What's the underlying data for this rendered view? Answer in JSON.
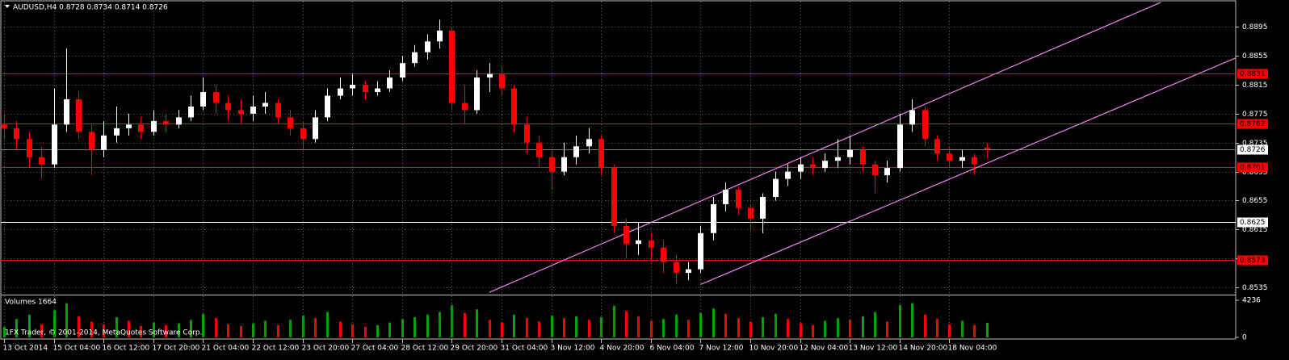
{
  "chart_data": {
    "type": "candlestick",
    "title": "AUDUSD,H4  0.8728 0.8734 0.8714 0.8726",
    "volume_title": "Volumes 1664",
    "copyright": "1FX Trader, © 2001-2014, MetaQuotes Software Corp.",
    "ylim": [
      0.8525,
      0.893
    ],
    "yticks": [
      0.8535,
      0.8575,
      0.8615,
      0.8655,
      0.8695,
      0.8735,
      0.8775,
      0.8815,
      0.8855,
      0.8895
    ],
    "vlim": [
      0,
      4236
    ],
    "vticks": [
      0,
      4236
    ],
    "grid": true,
    "up_color": "#ffffff",
    "down_color": "#ff0000",
    "volume_up_color": "#00a000",
    "volume_down_color": "#ff0000",
    "categories": [
      "13 Oct 2014",
      null,
      null,
      null,
      "15 Oct 04:00",
      null,
      null,
      null,
      "16 Oct 12:00",
      null,
      null,
      null,
      "17 Oct 20:00",
      null,
      null,
      null,
      "21 Oct 04:00",
      null,
      null,
      null,
      "22 Oct 12:00",
      null,
      null,
      null,
      "23 Oct 20:00",
      null,
      null,
      null,
      "27 Oct 04:00",
      null,
      null,
      null,
      "28 Oct 12:00",
      null,
      null,
      null,
      "29 Oct 20:00",
      null,
      null,
      null,
      "31 Oct 04:00",
      null,
      null,
      null,
      "3 Nov 12:00",
      null,
      null,
      null,
      "4 Nov 20:00",
      null,
      null,
      null,
      "6 Nov 04:00",
      null,
      null,
      null,
      "7 Nov 12:00",
      null,
      null,
      null,
      "10 Nov 20:00",
      null,
      null,
      null,
      "12 Nov 04:00",
      null,
      null,
      null,
      "13 Nov 12:00",
      null,
      null,
      null,
      "14 Nov 20:00",
      null,
      null,
      null,
      "18 Nov 04:00",
      null,
      null,
      null
    ],
    "candles": [
      [
        0.876,
        0.8775,
        0.874,
        0.8755
      ],
      [
        0.8755,
        0.8765,
        0.8725,
        0.874
      ],
      [
        0.874,
        0.875,
        0.87,
        0.8715
      ],
      [
        0.8715,
        0.873,
        0.8685,
        0.8705
      ],
      [
        0.8705,
        0.881,
        0.87,
        0.876
      ],
      [
        0.876,
        0.8865,
        0.875,
        0.8795
      ],
      [
        0.8795,
        0.8805,
        0.874,
        0.875
      ],
      [
        0.875,
        0.876,
        0.869,
        0.8725
      ],
      [
        0.8725,
        0.8765,
        0.8715,
        0.8745
      ],
      [
        0.8745,
        0.8785,
        0.8735,
        0.8755
      ],
      [
        0.8755,
        0.8775,
        0.8745,
        0.876
      ],
      [
        0.876,
        0.877,
        0.874,
        0.875
      ],
      [
        0.875,
        0.878,
        0.8745,
        0.8765
      ],
      [
        0.8765,
        0.8775,
        0.875,
        0.876
      ],
      [
        0.876,
        0.878,
        0.8755,
        0.877
      ],
      [
        0.877,
        0.88,
        0.8765,
        0.8785
      ],
      [
        0.8785,
        0.8825,
        0.878,
        0.8805
      ],
      [
        0.8805,
        0.8815,
        0.8775,
        0.879
      ],
      [
        0.879,
        0.88,
        0.8765,
        0.878
      ],
      [
        0.878,
        0.8795,
        0.876,
        0.8775
      ],
      [
        0.8775,
        0.88,
        0.8765,
        0.8785
      ],
      [
        0.8785,
        0.8805,
        0.8775,
        0.879
      ],
      [
        0.879,
        0.8795,
        0.876,
        0.877
      ],
      [
        0.877,
        0.878,
        0.8745,
        0.8755
      ],
      [
        0.8755,
        0.8765,
        0.8725,
        0.874
      ],
      [
        0.874,
        0.878,
        0.8735,
        0.877
      ],
      [
        0.877,
        0.881,
        0.8765,
        0.88
      ],
      [
        0.88,
        0.8825,
        0.8795,
        0.881
      ],
      [
        0.881,
        0.883,
        0.88,
        0.8815
      ],
      [
        0.8815,
        0.882,
        0.8795,
        0.8805
      ],
      [
        0.8805,
        0.882,
        0.88,
        0.881
      ],
      [
        0.881,
        0.8835,
        0.8805,
        0.8825
      ],
      [
        0.8825,
        0.8855,
        0.882,
        0.8845
      ],
      [
        0.8845,
        0.887,
        0.884,
        0.886
      ],
      [
        0.886,
        0.8885,
        0.885,
        0.8875
      ],
      [
        0.8875,
        0.8905,
        0.8865,
        0.889
      ],
      [
        0.889,
        0.8895,
        0.878,
        0.879
      ],
      [
        0.879,
        0.8815,
        0.876,
        0.878
      ],
      [
        0.878,
        0.8835,
        0.8775,
        0.8825
      ],
      [
        0.8825,
        0.8845,
        0.8805,
        0.883
      ],
      [
        0.883,
        0.884,
        0.88,
        0.881
      ],
      [
        0.881,
        0.8815,
        0.875,
        0.876
      ],
      [
        0.876,
        0.877,
        0.872,
        0.8735
      ],
      [
        0.8735,
        0.8745,
        0.87,
        0.8715
      ],
      [
        0.8715,
        0.8725,
        0.867,
        0.8695
      ],
      [
        0.8695,
        0.8735,
        0.869,
        0.8715
      ],
      [
        0.8715,
        0.8745,
        0.8705,
        0.873
      ],
      [
        0.873,
        0.8755,
        0.872,
        0.874
      ],
      [
        0.874,
        0.8745,
        0.869,
        0.87
      ],
      [
        0.87,
        0.8705,
        0.861,
        0.862
      ],
      [
        0.862,
        0.863,
        0.8575,
        0.8595
      ],
      [
        0.8595,
        0.8625,
        0.858,
        0.86
      ],
      [
        0.86,
        0.861,
        0.857,
        0.859
      ],
      [
        0.859,
        0.86,
        0.8555,
        0.857
      ],
      [
        0.857,
        0.858,
        0.854,
        0.8555
      ],
      [
        0.8555,
        0.857,
        0.8545,
        0.856
      ],
      [
        0.856,
        0.862,
        0.8555,
        0.861
      ],
      [
        0.861,
        0.866,
        0.86,
        0.865
      ],
      [
        0.865,
        0.868,
        0.864,
        0.867
      ],
      [
        0.867,
        0.8675,
        0.8635,
        0.8645
      ],
      [
        0.8645,
        0.865,
        0.8615,
        0.863
      ],
      [
        0.863,
        0.8665,
        0.861,
        0.866
      ],
      [
        0.866,
        0.8695,
        0.8655,
        0.8685
      ],
      [
        0.8685,
        0.8705,
        0.8675,
        0.8695
      ],
      [
        0.8695,
        0.8715,
        0.8685,
        0.8705
      ],
      [
        0.8705,
        0.8715,
        0.869,
        0.87
      ],
      [
        0.87,
        0.872,
        0.8695,
        0.871
      ],
      [
        0.871,
        0.874,
        0.87,
        0.8715
      ],
      [
        0.8715,
        0.8745,
        0.8705,
        0.8725
      ],
      [
        0.8725,
        0.873,
        0.8695,
        0.8705
      ],
      [
        0.8705,
        0.871,
        0.8665,
        0.869
      ],
      [
        0.869,
        0.871,
        0.868,
        0.87
      ],
      [
        0.87,
        0.8775,
        0.8695,
        0.876
      ],
      [
        0.876,
        0.8795,
        0.875,
        0.878
      ],
      [
        0.878,
        0.8785,
        0.873,
        0.874
      ],
      [
        0.874,
        0.8745,
        0.871,
        0.872
      ],
      [
        0.872,
        0.873,
        0.87,
        0.871
      ],
      [
        0.871,
        0.8725,
        0.87,
        0.8715
      ],
      [
        0.8715,
        0.872,
        0.869,
        0.8705
      ],
      [
        0.8728,
        0.8734,
        0.8714,
        0.8726
      ]
    ],
    "volumes": [
      1200,
      2100,
      2600,
      1500,
      3100,
      3900,
      2400,
      1800,
      1500,
      2300,
      1900,
      1300,
      1700,
      1400,
      1600,
      2000,
      2700,
      2200,
      1500,
      1300,
      1600,
      1900,
      1400,
      2000,
      2500,
      2200,
      2900,
      1800,
      1500,
      1200,
      1400,
      1700,
      2100,
      2300,
      2600,
      2900,
      3700,
      2800,
      3200,
      2000,
      1700,
      2600,
      2200,
      1800,
      2500,
      2200,
      2400,
      2000,
      2300,
      3600,
      3000,
      2400,
      1900,
      2100,
      2600,
      2000,
      2800,
      3300,
      2700,
      2200,
      1800,
      2300,
      2700,
      2100,
      1600,
      1400,
      1900,
      2200,
      2000,
      2400,
      2900,
      1800,
      3700,
      3900,
      2600,
      2100,
      1500,
      1900,
      1400,
      1664
    ],
    "levels": [
      {
        "value": 0.8831,
        "color": "#ff0000"
      },
      {
        "value": 0.8762,
        "color": "#ff0000"
      },
      {
        "value": 0.8701,
        "color": "#ff0000"
      },
      {
        "value": 0.8625,
        "color": "#ffffff"
      },
      {
        "value": 0.8573,
        "color": "#ff0000"
      }
    ],
    "current_price": 0.8726,
    "trendlines": [
      {
        "x": [
          39,
          93
        ],
        "y": [
          0.8528,
          0.8929
        ],
        "color": "#ee82ee"
      },
      {
        "x": [
          56,
          99
        ],
        "y": [
          0.8539,
          0.8852
        ],
        "color": "#ee82ee"
      }
    ]
  }
}
